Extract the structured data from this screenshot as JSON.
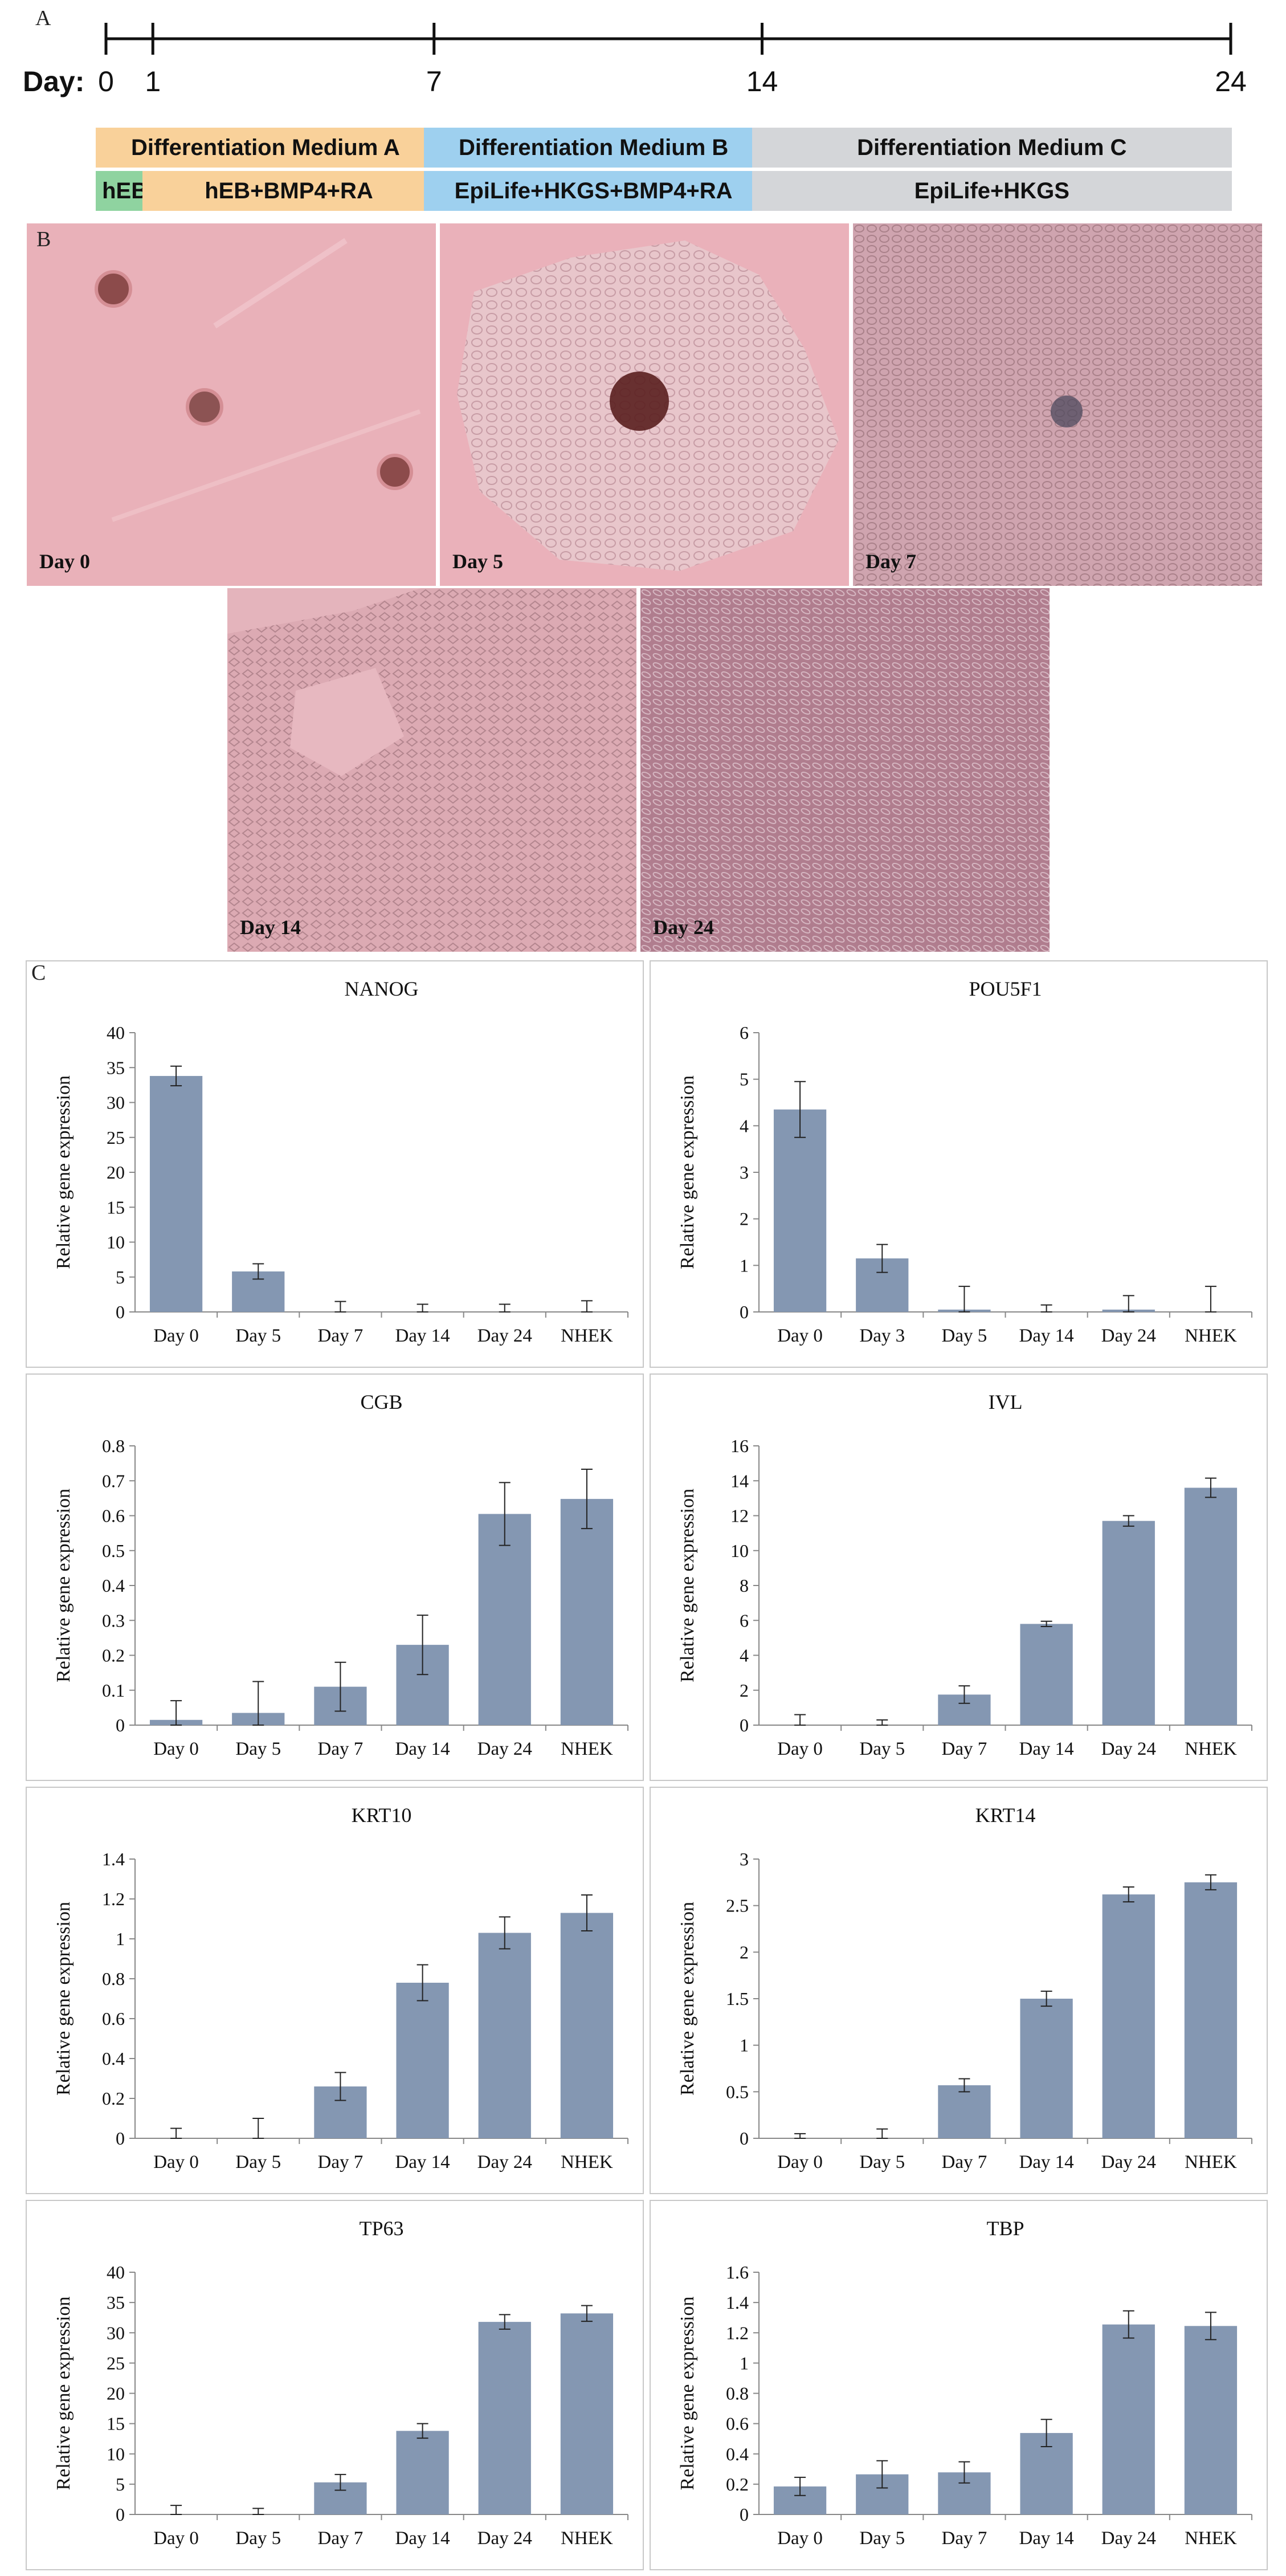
{
  "panel_labels": {
    "a": "A",
    "b": "B",
    "c": "C"
  },
  "timeline": {
    "axis_label": "Day:",
    "ticks": [
      {
        "day": 0,
        "label": "0"
      },
      {
        "day": 1,
        "label": "1"
      },
      {
        "day": 7,
        "label": "7"
      },
      {
        "day": 14,
        "label": "14"
      },
      {
        "day": 24,
        "label": "24"
      }
    ],
    "media": [
      {
        "label": "Differentiation Medium A",
        "start": 0,
        "end": 7,
        "color": "#f9d19a"
      },
      {
        "label": "Differentiation Medium B",
        "start": 7,
        "end": 14,
        "color": "#9ed0ef"
      },
      {
        "label": "Differentiation Medium C",
        "start": 14,
        "end": 24,
        "color": "#d4d6d9"
      }
    ],
    "conditions": [
      {
        "label": "hEB",
        "start": 0,
        "end": 1,
        "color": "#8fd3a0"
      },
      {
        "label": "hEB+BMP4+RA",
        "start": 1,
        "end": 7,
        "color": "#f9d19a"
      },
      {
        "label": "EpiLife+HKGS+BMP4+RA",
        "start": 7,
        "end": 14,
        "color": "#9ed0ef"
      },
      {
        "label": "EpiLife+HKGS",
        "start": 14,
        "end": 24,
        "color": "#d4d6d9"
      }
    ]
  },
  "micrographs": [
    {
      "label": "Day 0"
    },
    {
      "label": "Day 5"
    },
    {
      "label": "Day 7"
    },
    {
      "label": "Day 14"
    },
    {
      "label": "Day 24"
    }
  ],
  "chart_data": [
    {
      "type": "bar",
      "title": "NANOG",
      "ylabel": "Relative gene expression",
      "ylim": [
        0,
        40
      ],
      "yticks": [
        0,
        5,
        10,
        15,
        20,
        25,
        30,
        35,
        40
      ],
      "categories": [
        "Day 0",
        "Day 5",
        "Day 7",
        "Day 14",
        "Day 24",
        "NHEK"
      ],
      "values": [
        33.8,
        5.8,
        0,
        0,
        0,
        0
      ],
      "errors": [
        1.4,
        1.1,
        1.5,
        1.1,
        1.1,
        1.6
      ]
    },
    {
      "type": "bar",
      "title": "POU5F1",
      "ylabel": "Relative gene expression",
      "ylim": [
        0,
        6
      ],
      "yticks": [
        0,
        1,
        2,
        3,
        4,
        5,
        6
      ],
      "categories": [
        "Day 0",
        "Day 3",
        "Day 5",
        "Day 14",
        "Day 24",
        "NHEK"
      ],
      "values": [
        4.35,
        1.15,
        0.05,
        0,
        0.05,
        0
      ],
      "errors": [
        0.6,
        0.3,
        0.5,
        0.15,
        0.3,
        0.55
      ]
    },
    {
      "type": "bar",
      "title": "CGB",
      "ylabel": "Relative gene expression",
      "ylim": [
        0,
        0.8
      ],
      "yticks": [
        0,
        0.1,
        0.2,
        0.3,
        0.4,
        0.5,
        0.6,
        0.7,
        0.8
      ],
      "categories": [
        "Day 0",
        "Day 5",
        "Day 7",
        "Day 14",
        "Day 24",
        "NHEK"
      ],
      "values": [
        0.015,
        0.035,
        0.11,
        0.23,
        0.605,
        0.648
      ],
      "errors": [
        0.055,
        0.09,
        0.07,
        0.085,
        0.09,
        0.085
      ]
    },
    {
      "type": "bar",
      "title": "IVL",
      "ylabel": "Relative gene expression",
      "ylim": [
        0,
        16
      ],
      "yticks": [
        0,
        2,
        4,
        6,
        8,
        10,
        12,
        14,
        16
      ],
      "categories": [
        "Day 0",
        "Day 5",
        "Day 7",
        "Day 14",
        "Day 24",
        "NHEK"
      ],
      "values": [
        0,
        0,
        1.75,
        5.8,
        11.7,
        13.6
      ],
      "errors": [
        0.6,
        0.3,
        0.5,
        0.15,
        0.3,
        0.55
      ]
    },
    {
      "type": "bar",
      "title": "KRT10",
      "ylabel": "Relative gene expression",
      "ylim": [
        0,
        1.4
      ],
      "yticks": [
        0,
        0.2,
        0.4,
        0.6,
        0.8,
        1,
        1.2,
        1.4
      ],
      "categories": [
        "Day 0",
        "Day 5",
        "Day 7",
        "Day 14",
        "Day 24",
        "NHEK"
      ],
      "values": [
        0,
        0,
        0.26,
        0.78,
        1.03,
        1.13
      ],
      "errors": [
        0.05,
        0.1,
        0.07,
        0.09,
        0.08,
        0.09
      ]
    },
    {
      "type": "bar",
      "title": "KRT14",
      "ylabel": "Relative gene expression",
      "ylim": [
        0,
        3
      ],
      "yticks": [
        0,
        0.5,
        1,
        1.5,
        2,
        2.5,
        3
      ],
      "categories": [
        "Day 0",
        "Day 5",
        "Day 7",
        "Day 14",
        "Day 24",
        "NHEK"
      ],
      "values": [
        0,
        0,
        0.57,
        1.5,
        2.62,
        2.75
      ],
      "errors": [
        0.05,
        0.1,
        0.07,
        0.08,
        0.08,
        0.08
      ]
    },
    {
      "type": "bar",
      "title": "TP63",
      "ylabel": "Relative gene expression",
      "ylim": [
        0,
        40
      ],
      "yticks": [
        0,
        5,
        10,
        15,
        20,
        25,
        30,
        35,
        40
      ],
      "categories": [
        "Day 0",
        "Day 5",
        "Day 7",
        "Day 14",
        "Day 24",
        "NHEK"
      ],
      "values": [
        0,
        0,
        5.3,
        13.8,
        31.8,
        33.2
      ],
      "errors": [
        1.5,
        1.0,
        1.3,
        1.2,
        1.2,
        1.3
      ]
    },
    {
      "type": "bar",
      "title": "TBP",
      "ylabel": "Relative gene expression",
      "ylim": [
        0,
        1.6
      ],
      "yticks": [
        0,
        0.2,
        0.4,
        0.6,
        0.8,
        1,
        1.2,
        1.4,
        1.6
      ],
      "categories": [
        "Day 0",
        "Day 5",
        "Day 7",
        "Day 14",
        "Day 24",
        "NHEK"
      ],
      "values": [
        0.185,
        0.265,
        0.278,
        0.538,
        1.255,
        1.245
      ],
      "errors": [
        0.06,
        0.09,
        0.07,
        0.09,
        0.09,
        0.09
      ]
    }
  ]
}
